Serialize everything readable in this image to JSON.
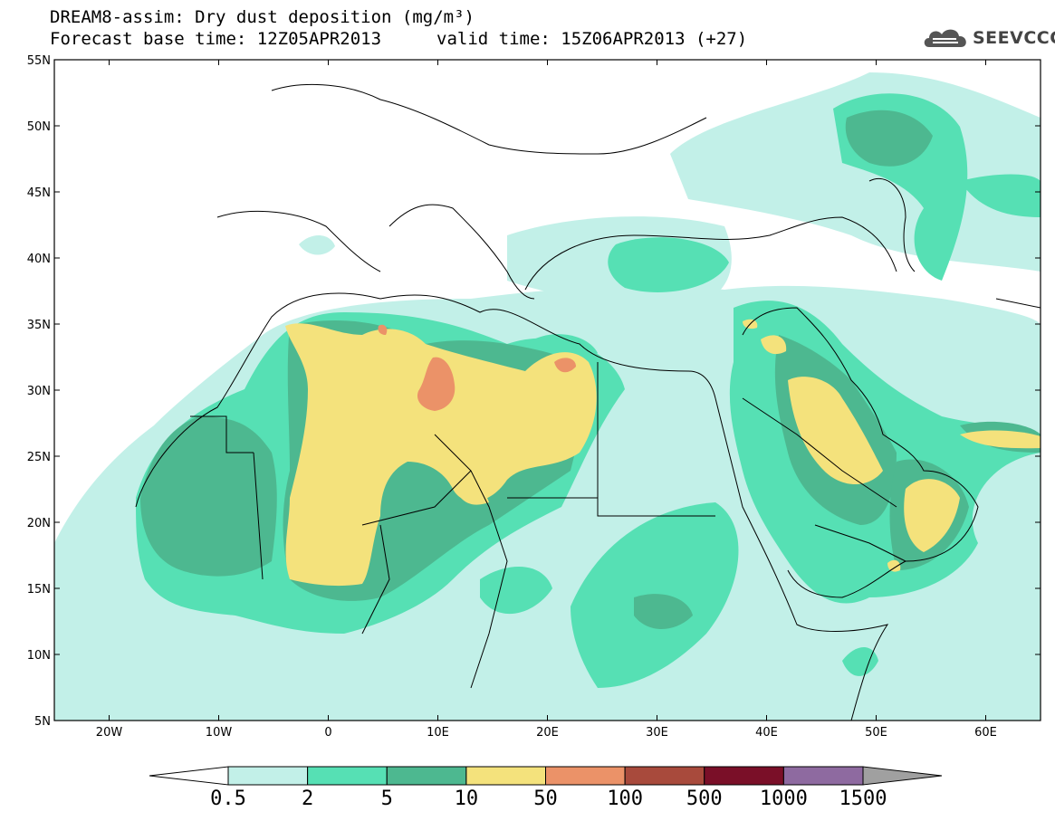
{
  "title": {
    "line1": "DREAM8-assim: Dry dust deposition (mg/m³)",
    "line2": "Forecast base time: 12Z05APR2013",
    "valid": "valid time: 15Z06APR2013 (+27)"
  },
  "logo": {
    "text": "SEEVCCC",
    "icon": "cloud-logo-icon"
  },
  "map": {
    "lon_range": [
      -25,
      65
    ],
    "lat_range": [
      5,
      55
    ],
    "lat_ticks": [
      {
        "value": 55,
        "label": "55N"
      },
      {
        "value": 50,
        "label": "50N"
      },
      {
        "value": 45,
        "label": "45N"
      },
      {
        "value": 40,
        "label": "40N"
      },
      {
        "value": 35,
        "label": "35N"
      },
      {
        "value": 30,
        "label": "30N"
      },
      {
        "value": 25,
        "label": "25N"
      },
      {
        "value": 20,
        "label": "20N"
      },
      {
        "value": 15,
        "label": "15N"
      },
      {
        "value": 10,
        "label": "10N"
      },
      {
        "value": 5,
        "label": "5N"
      }
    ],
    "lon_ticks": [
      {
        "value": -20,
        "label": "20W"
      },
      {
        "value": -10,
        "label": "10W"
      },
      {
        "value": 0,
        "label": "0"
      },
      {
        "value": 10,
        "label": "10E"
      },
      {
        "value": 20,
        "label": "20E"
      },
      {
        "value": 30,
        "label": "30E"
      },
      {
        "value": 40,
        "label": "40E"
      },
      {
        "value": 50,
        "label": "50E"
      },
      {
        "value": 60,
        "label": "60E"
      }
    ]
  },
  "colorbar": {
    "colors": [
      "#c2f0e8",
      "#56e0b4",
      "#4db890",
      "#f4e27c",
      "#eb9268",
      "#a84a3c",
      "#7a0f28",
      "#8e6aa0"
    ],
    "low_arrow_color": "#ffffff",
    "high_arrow_color": "#a0a0a0",
    "labels": [
      "0.5",
      "2",
      "5",
      "10",
      "50",
      "100",
      "500",
      "1000",
      "1500"
    ]
  }
}
